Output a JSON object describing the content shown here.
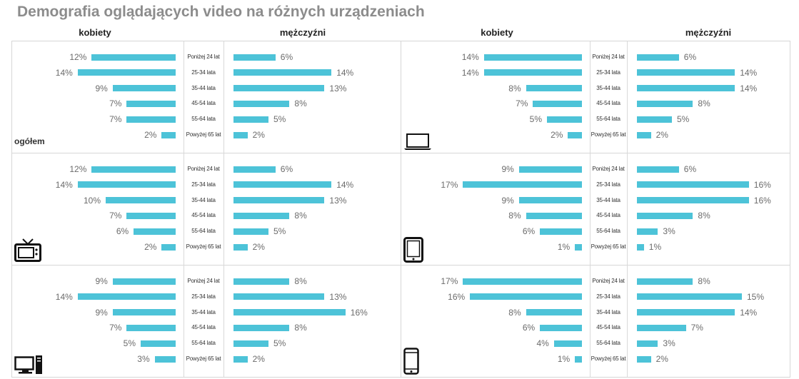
{
  "title": "Demografia oglądających video na różnych urządzeniach",
  "headers": [
    "kobiety",
    "mężczyźni",
    "kobiety",
    "mężczyźni"
  ],
  "chart_data": {
    "type": "bar",
    "categories": [
      "Poniżej 24 lat",
      "25-34 lata",
      "35-44 lata",
      "45-54 lata",
      "55-64 lata",
      "Powyżej 65 lat"
    ],
    "series_labels": [
      "kobiety",
      "mężczyźni"
    ],
    "panels": [
      {
        "label": "ogółem",
        "icon": "none",
        "women": [
          12,
          14,
          9,
          7,
          7,
          2
        ],
        "men": [
          6,
          14,
          13,
          8,
          5,
          2
        ]
      },
      {
        "label": "",
        "icon": "laptop-icon",
        "women": [
          14,
          14,
          8,
          7,
          5,
          2
        ],
        "men": [
          6,
          14,
          14,
          8,
          5,
          2
        ]
      },
      {
        "label": "",
        "icon": "tv-icon",
        "women": [
          12,
          14,
          10,
          7,
          6,
          2
        ],
        "men": [
          6,
          14,
          13,
          8,
          5,
          2
        ]
      },
      {
        "label": "",
        "icon": "tablet-icon",
        "women": [
          9,
          17,
          9,
          8,
          6,
          1
        ],
        "men": [
          6,
          16,
          16,
          8,
          3,
          1
        ]
      },
      {
        "label": "",
        "icon": "desktop-icon",
        "women": [
          9,
          14,
          9,
          7,
          5,
          3
        ],
        "men": [
          8,
          13,
          16,
          8,
          5,
          2
        ]
      },
      {
        "label": "",
        "icon": "smartphone-icon",
        "women": [
          17,
          16,
          8,
          6,
          4,
          1
        ],
        "men": [
          8,
          15,
          14,
          7,
          3,
          2
        ]
      }
    ],
    "value_suffix": "%"
  }
}
